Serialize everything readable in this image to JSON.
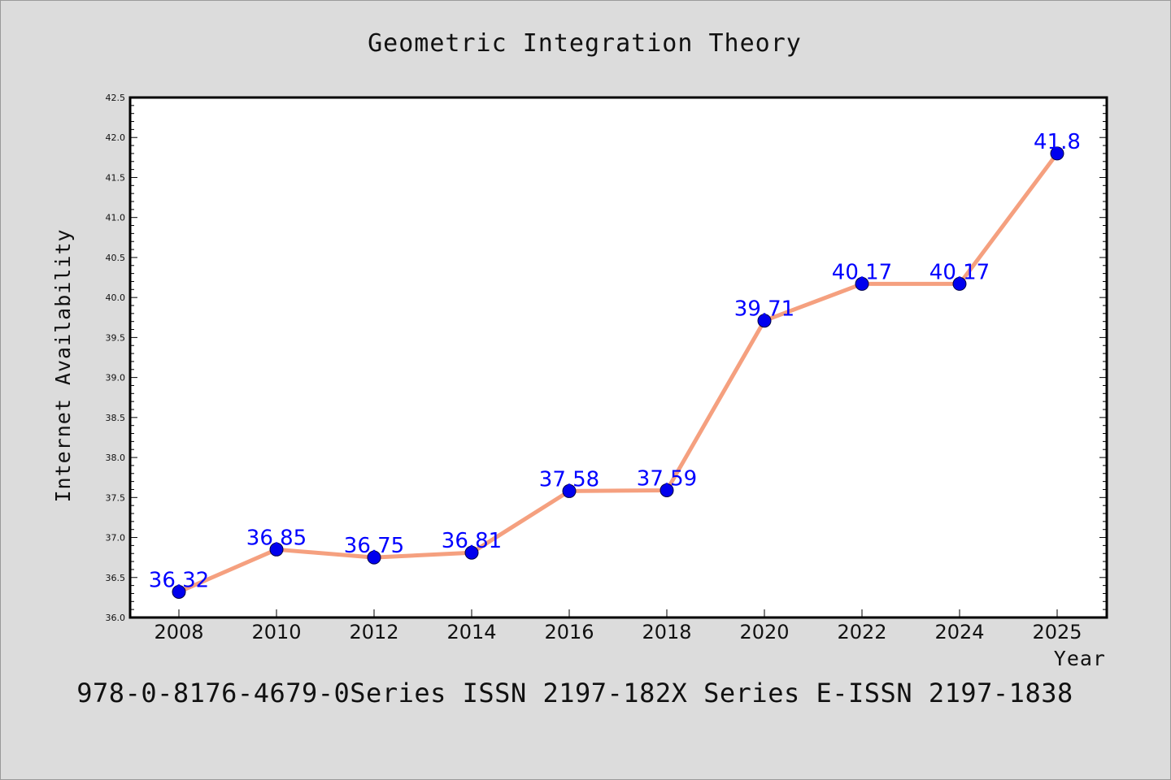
{
  "chart_data": {
    "type": "line",
    "title": "Geometric Integration Theory",
    "xlabel": "Year",
    "ylabel": "Internet Availability",
    "footer": "978-0-8176-4679-0Series ISSN 2197-182X Series E-ISSN 2197-1838",
    "x": [
      "2008",
      "2010",
      "2012",
      "2014",
      "2016",
      "2018",
      "2020",
      "2022",
      "2024",
      "2025"
    ],
    "values": [
      36.32,
      36.85,
      36.75,
      36.81,
      37.58,
      37.59,
      39.71,
      40.17,
      40.17,
      41.8
    ],
    "data_labels": [
      "36.32",
      "36.85",
      "36.75",
      "36.81",
      "37.58",
      "37.59",
      "39.71",
      "40.17",
      "40.17",
      "41.8"
    ],
    "ylim": [
      36.0,
      42.5
    ],
    "y_ticks": [
      "36.0",
      "36.5",
      "37.0",
      "37.5",
      "38.0",
      "38.5",
      "39.0",
      "39.5",
      "40.0",
      "40.5",
      "41.0",
      "41.5",
      "42.0",
      "42.5"
    ],
    "grid": false,
    "legend": "none",
    "colors": {
      "line": "#f5a07f",
      "marker": "#0000ee",
      "data_label": "#0000ff",
      "plot_background": "#ffffff",
      "page_background": "#dcdcdc"
    }
  }
}
